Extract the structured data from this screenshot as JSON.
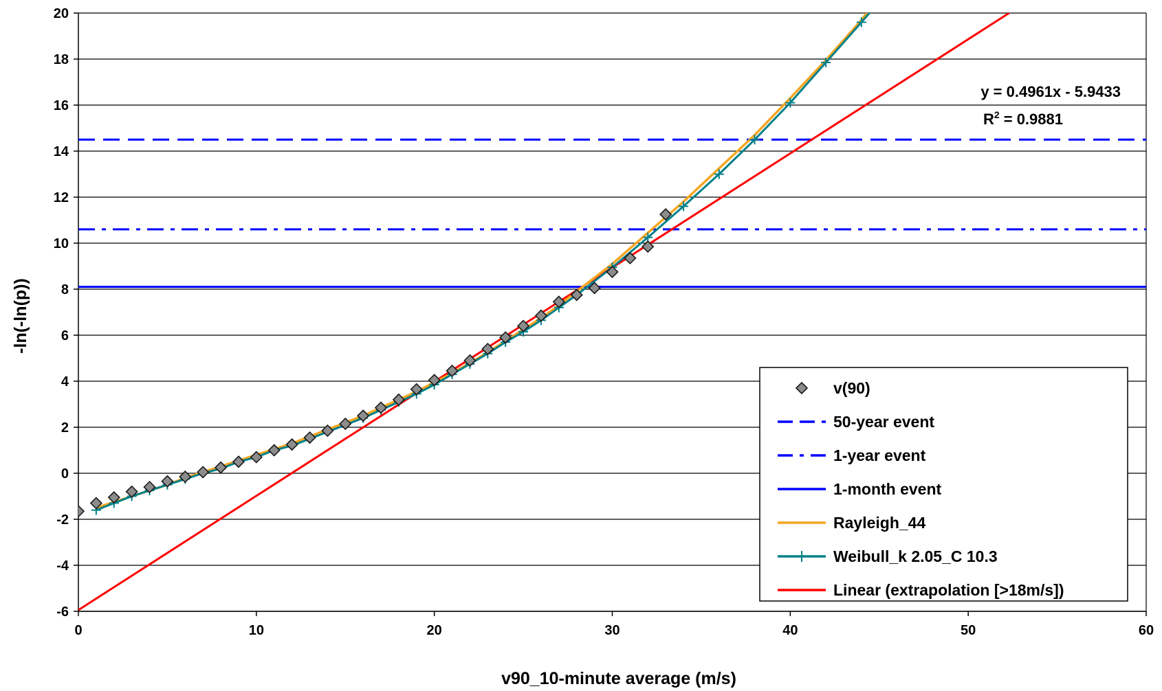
{
  "chart_data": {
    "type": "line",
    "xlabel": "v90_10-minute average (m/s)",
    "ylabel": "-ln(-ln(p))",
    "xlim": [
      0,
      60
    ],
    "ylim": [
      -6,
      20
    ],
    "xticks": [
      0,
      10,
      20,
      30,
      40,
      50,
      60
    ],
    "yticks": [
      -6,
      -4,
      -2,
      0,
      2,
      4,
      6,
      8,
      10,
      12,
      14,
      16,
      18,
      20
    ],
    "grid": "horizontal",
    "legend_position": "bottom-right",
    "trendline_equation": "y = 0.4961x - 5.9433",
    "r_squared_prefix": "R",
    "r_squared_sup": "2",
    "r_squared_value": " = 0.9881",
    "series": [
      {
        "name": "v(90)",
        "style": "markers",
        "marker": "diamond",
        "color": "#808080",
        "points": [
          [
            0,
            -1.65
          ],
          [
            1,
            -1.3
          ],
          [
            2,
            -1.05
          ],
          [
            3,
            -0.8
          ],
          [
            4,
            -0.6
          ],
          [
            5,
            -0.35
          ],
          [
            6,
            -0.15
          ],
          [
            7,
            0.05
          ],
          [
            8,
            0.25
          ],
          [
            9,
            0.5
          ],
          [
            10,
            0.7
          ],
          [
            11,
            1.0
          ],
          [
            12,
            1.25
          ],
          [
            13,
            1.55
          ],
          [
            14,
            1.85
          ],
          [
            15,
            2.15
          ],
          [
            16,
            2.5
          ],
          [
            17,
            2.85
          ],
          [
            18,
            3.2
          ],
          [
            19,
            3.65
          ],
          [
            20,
            4.05
          ],
          [
            21,
            4.45
          ],
          [
            22,
            4.9
          ],
          [
            23,
            5.4
          ],
          [
            24,
            5.9
          ],
          [
            25,
            6.4
          ],
          [
            26,
            6.85
          ],
          [
            27,
            7.45
          ],
          [
            28,
            7.75
          ],
          [
            29,
            8.05
          ],
          [
            30,
            8.75
          ],
          [
            31,
            9.35
          ],
          [
            32,
            9.85
          ],
          [
            33,
            11.25
          ]
        ]
      },
      {
        "name": "50-year event",
        "style": "dashed",
        "color": "#0000ff",
        "constant_y": 14.5
      },
      {
        "name": "1-year event",
        "style": "dashdot",
        "color": "#0000ff",
        "constant_y": 10.6
      },
      {
        "name": "1-month event",
        "style": "solid",
        "color": "#0000ff",
        "constant_y": 8.1
      },
      {
        "name": "Rayleigh_44",
        "style": "solid",
        "color": "#f5a623",
        "points": [
          [
            1,
            -1.5
          ],
          [
            2,
            -1.25
          ],
          [
            3,
            -1.0
          ],
          [
            4,
            -0.75
          ],
          [
            5,
            -0.5
          ],
          [
            6,
            -0.2
          ],
          [
            7,
            0.05
          ],
          [
            8,
            0.3
          ],
          [
            9,
            0.55
          ],
          [
            10,
            0.8
          ],
          [
            11,
            1.05
          ],
          [
            12,
            1.3
          ],
          [
            13,
            1.6
          ],
          [
            14,
            1.9
          ],
          [
            15,
            2.2
          ],
          [
            16,
            2.5
          ],
          [
            17,
            2.85
          ],
          [
            18,
            3.2
          ],
          [
            19,
            3.55
          ],
          [
            20,
            3.95
          ],
          [
            21,
            4.35
          ],
          [
            22,
            4.8
          ],
          [
            23,
            5.25
          ],
          [
            24,
            5.75
          ],
          [
            25,
            6.25
          ],
          [
            26,
            6.75
          ],
          [
            27,
            7.3
          ],
          [
            28,
            7.9
          ],
          [
            30,
            9.1
          ],
          [
            32,
            10.45
          ],
          [
            34,
            11.8
          ],
          [
            36,
            13.25
          ],
          [
            38,
            14.7
          ],
          [
            40,
            16.3
          ],
          [
            42,
            17.95
          ],
          [
            44,
            19.7
          ],
          [
            45,
            20.7
          ]
        ]
      },
      {
        "name": "Weibull_k 2.05_C 10.3",
        "style": "line-plus-markers",
        "color": "#00808a",
        "marker": "plus",
        "points": [
          [
            1,
            -1.6
          ],
          [
            2,
            -1.3
          ],
          [
            3,
            -1.0
          ],
          [
            4,
            -0.75
          ],
          [
            5,
            -0.5
          ],
          [
            6,
            -0.25
          ],
          [
            7,
            0.0
          ],
          [
            8,
            0.2
          ],
          [
            9,
            0.5
          ],
          [
            10,
            0.7
          ],
          [
            11,
            1.0
          ],
          [
            12,
            1.2
          ],
          [
            13,
            1.5
          ],
          [
            14,
            1.8
          ],
          [
            15,
            2.1
          ],
          [
            16,
            2.4
          ],
          [
            17,
            2.75
          ],
          [
            18,
            3.1
          ],
          [
            19,
            3.45
          ],
          [
            20,
            3.85
          ],
          [
            21,
            4.3
          ],
          [
            22,
            4.75
          ],
          [
            23,
            5.2
          ],
          [
            24,
            5.7
          ],
          [
            25,
            6.15
          ],
          [
            26,
            6.65
          ],
          [
            27,
            7.2
          ],
          [
            28,
            7.75
          ],
          [
            30,
            8.95
          ],
          [
            32,
            10.25
          ],
          [
            34,
            11.6
          ],
          [
            36,
            13.0
          ],
          [
            38,
            14.5
          ],
          [
            40,
            16.1
          ],
          [
            42,
            17.85
          ],
          [
            44,
            19.6
          ],
          [
            45,
            20.5
          ]
        ]
      },
      {
        "name": "Linear (extrapolation [>18m/s])",
        "style": "solid",
        "color": "#ff0000",
        "slope": 0.4961,
        "intercept": -5.9433
      }
    ]
  }
}
